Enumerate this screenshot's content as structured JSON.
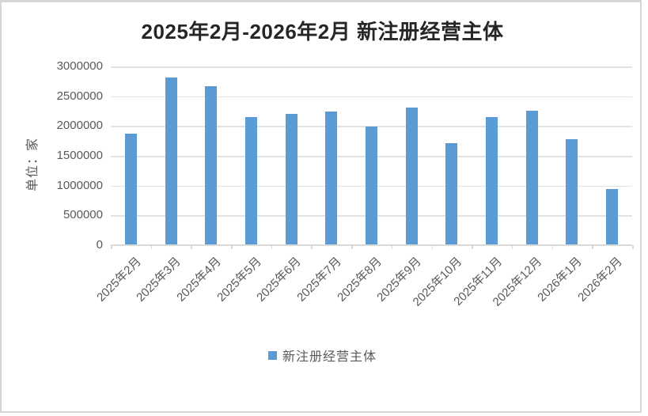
{
  "colors": {
    "bar": "#5B9BD5",
    "gridline": "#E2E2E2",
    "axis_line": "#D9D9D9",
    "label_text": "#595959",
    "title_text": "#262626",
    "frame_border": "#D6D6D6"
  },
  "chart_data": {
    "type": "bar",
    "title": "2025年2月-2026年2月 新注册经营主体",
    "ylabel": "单位：家",
    "xlabel": "",
    "categories": [
      "2025年2月",
      "2025年3月",
      "2025年4月",
      "2025年5月",
      "2025年6月",
      "2025年7月",
      "2025年8月",
      "2025年9月",
      "2025年10月",
      "2025年11月",
      "2025年12月",
      "2026年1月",
      "2026年2月"
    ],
    "series": [
      {
        "name": "新注册经营主体",
        "values": [
          1870000,
          2810000,
          2670000,
          2150000,
          2200000,
          2240000,
          1990000,
          2310000,
          1710000,
          2150000,
          2260000,
          1780000,
          940000
        ]
      }
    ],
    "ylim": [
      0,
      3000000
    ],
    "ytick_step": 500000,
    "ytick_labels": [
      "3000000",
      "2500000",
      "2000000",
      "1500000",
      "1000000",
      "500000",
      "0"
    ],
    "grid": true,
    "legend_position": "bottom"
  }
}
